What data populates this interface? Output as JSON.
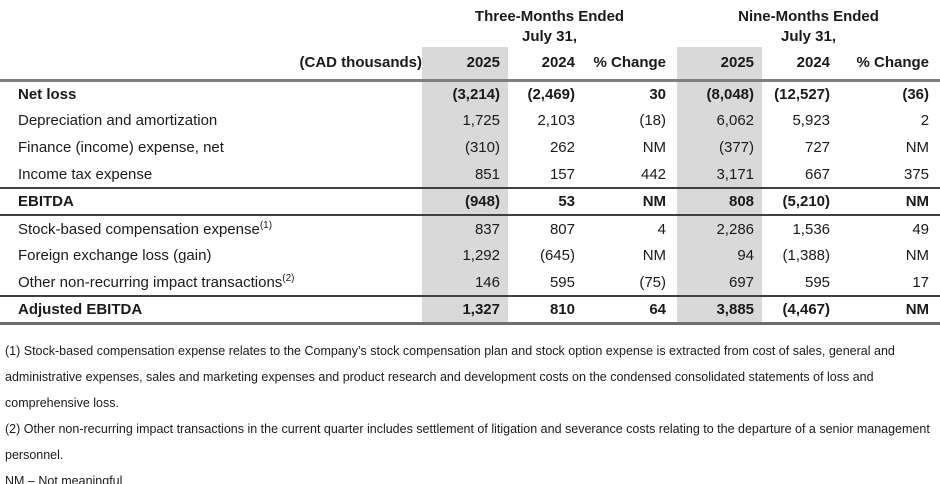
{
  "table": {
    "units_label": "(CAD thousands)",
    "groups": [
      {
        "title": "Three-Months Ended",
        "subtitle": "July 31,"
      },
      {
        "title": "Nine-Months Ended",
        "subtitle": "July 31,"
      }
    ],
    "columns": [
      "2025",
      "2024",
      "% Change",
      "2025",
      "2024",
      "% Change"
    ],
    "rows": [
      {
        "label": "Net loss",
        "sup": "",
        "type": "lead",
        "values": [
          "(3,214)",
          "(2,469)",
          "30",
          "(8,048)",
          "(12,527)",
          "(36)"
        ]
      },
      {
        "label": "Depreciation and amortization",
        "sup": "",
        "type": "item",
        "values": [
          "1,725",
          "2,103",
          "(18)",
          "6,062",
          "5,923",
          "2"
        ]
      },
      {
        "label": "Finance (income) expense, net",
        "sup": "",
        "type": "item",
        "values": [
          "(310)",
          "262",
          "NM",
          "(377)",
          "727",
          "NM"
        ]
      },
      {
        "label": "Income tax expense",
        "sup": "",
        "type": "item",
        "values": [
          "851",
          "157",
          "442",
          "3,171",
          "667",
          "375"
        ]
      },
      {
        "label": "EBITDA",
        "sup": "",
        "type": "subtotal",
        "values": [
          "(948)",
          "53",
          "NM",
          "808",
          "(5,210)",
          "NM"
        ]
      },
      {
        "label": "Stock-based compensation expense",
        "sup": "(1)",
        "type": "item",
        "values": [
          "837",
          "807",
          "4",
          "2,286",
          "1,536",
          "49"
        ]
      },
      {
        "label": "Foreign exchange loss (gain)",
        "sup": "",
        "type": "item",
        "values": [
          "1,292",
          "(645)",
          "NM",
          "94",
          "(1,388)",
          "NM"
        ]
      },
      {
        "label": "Other non-recurring impact transactions",
        "sup": "(2)",
        "type": "item",
        "values": [
          "146",
          "595",
          "(75)",
          "697",
          "595",
          "17"
        ]
      },
      {
        "label": "Adjusted EBITDA",
        "sup": "",
        "type": "total",
        "values": [
          "1,327",
          "810",
          "64",
          "3,885",
          "(4,467)",
          "NM"
        ]
      }
    ]
  },
  "footnotes": [
    "(1) Stock-based compensation expense relates to the Company’s stock compensation plan and stock option expense is extracted from cost of sales, general and administrative expenses, sales and marketing expenses and product research and development costs on the condensed consolidated statements of loss and comprehensive loss.",
    "(2) Other non-recurring impact transactions in the current quarter includes settlement of litigation and severance costs relating to the departure of a senior management personnel.",
    "NM – Not meaningful"
  ],
  "colors": {
    "highlight_column": "#d9d9d9",
    "header_rule": "#7f7f7f",
    "section_rule": "#404040",
    "text": "#1a1a1a",
    "background": "#ffffff"
  }
}
